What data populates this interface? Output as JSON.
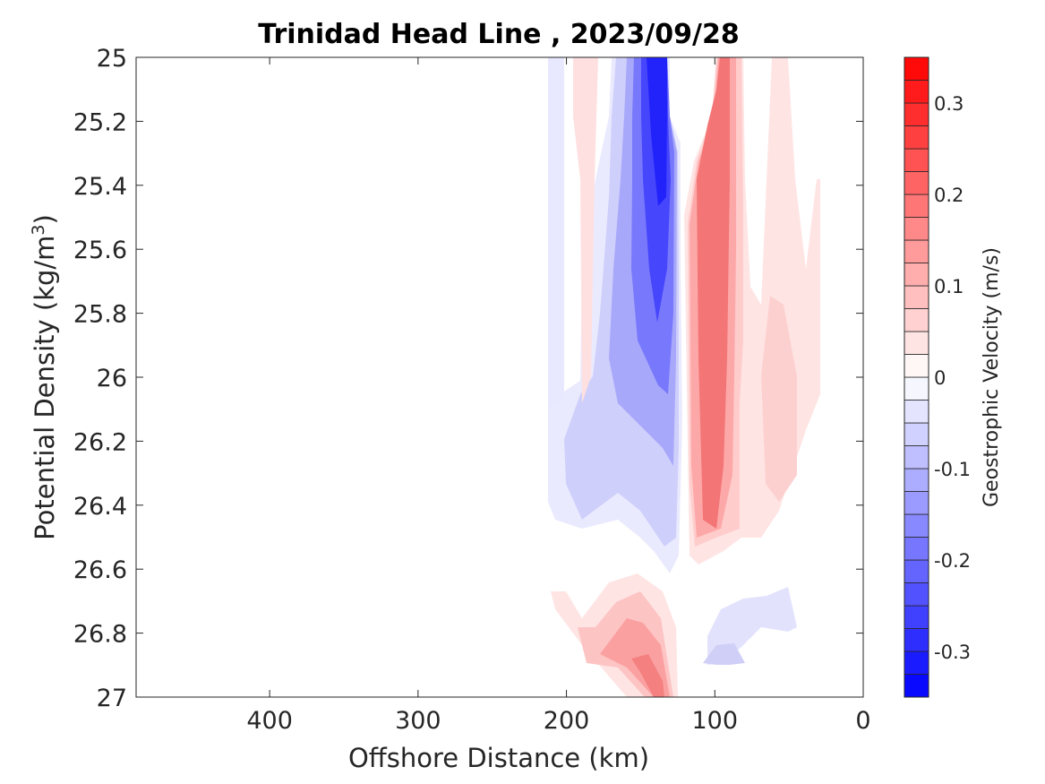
{
  "chart_data": {
    "type": "heatmap",
    "title": "Trinidad Head Line , 2023/09/28",
    "xlabel": "Offshore Distance (km)",
    "ylabel": "Potential Density (kg/m",
    "ylabel_superscript": "3",
    "ylabel_suffix": ")",
    "xlim": [
      490,
      0
    ],
    "ylim": [
      25,
      27
    ],
    "x_reversed": true,
    "y_reversed": true,
    "x_ticks": [
      400,
      300,
      200,
      100,
      0
    ],
    "x_tick_labels": [
      "400",
      "300",
      "200",
      "100",
      "0"
    ],
    "y_ticks": [
      25,
      25.2,
      25.4,
      25.6,
      25.8,
      26,
      26.2,
      26.4,
      26.6,
      26.8,
      27
    ],
    "y_tick_labels": [
      "25",
      "25.2",
      "25.4",
      "25.6",
      "25.8",
      "26",
      "26.2",
      "26.4",
      "26.6",
      "26.8",
      "27"
    ],
    "colorbar": {
      "label": "Geostrophic Velocity (m/s)",
      "range": [
        -0.35,
        0.35
      ],
      "levels": [
        -0.35,
        -0.325,
        -0.3,
        -0.275,
        -0.25,
        -0.225,
        -0.2,
        -0.175,
        -0.15,
        -0.125,
        -0.1,
        -0.075,
        -0.05,
        -0.025,
        0,
        0.025,
        0.05,
        0.075,
        0.1,
        0.125,
        0.15,
        0.175,
        0.2,
        0.225,
        0.25,
        0.275,
        0.3,
        0.325,
        0.35
      ],
      "ticks": [
        0.3,
        0.2,
        0.1,
        0,
        -0.1,
        -0.2,
        -0.3
      ],
      "tick_labels": [
        "0.3",
        "0.2",
        "0.1",
        "0",
        "-0.1",
        "-0.2",
        "-0.3"
      ],
      "low_color": "#0000ff",
      "zero_color": "#ffffff",
      "high_color": "#ff0000"
    },
    "features": [
      {
        "name": "nearshore negative core",
        "x_range": [
          125,
          160
        ],
        "y_range": [
          25.0,
          26.6
        ],
        "peak_velocity": -0.3
      },
      {
        "name": "positive jet",
        "x_range": [
          80,
          120
        ],
        "y_range": [
          25.0,
          26.55
        ],
        "peak_velocity": 0.2
      },
      {
        "name": "weak positive band",
        "x_range": [
          30,
          80
        ],
        "y_range": [
          25.0,
          26.5
        ],
        "peak_velocity": 0.05
      },
      {
        "name": "offshore weak negative edge",
        "x_range": [
          200,
          215
        ],
        "y_range": [
          25.0,
          26.2
        ],
        "peak_velocity": -0.05
      },
      {
        "name": "weak positive band west",
        "x_range": [
          180,
          200
        ],
        "y_range": [
          25.0,
          26.0
        ],
        "peak_velocity": 0.05
      },
      {
        "name": "deep positive lobe",
        "x_range": [
          125,
          210
        ],
        "y_range": [
          26.65,
          27.0
        ],
        "peak_velocity": 0.15
      },
      {
        "name": "deep negative lobe",
        "x_range": [
          45,
          115
        ],
        "y_range": [
          26.65,
          26.95
        ],
        "peak_velocity": -0.05
      }
    ],
    "grid": false,
    "legend": "colorbar-right"
  }
}
